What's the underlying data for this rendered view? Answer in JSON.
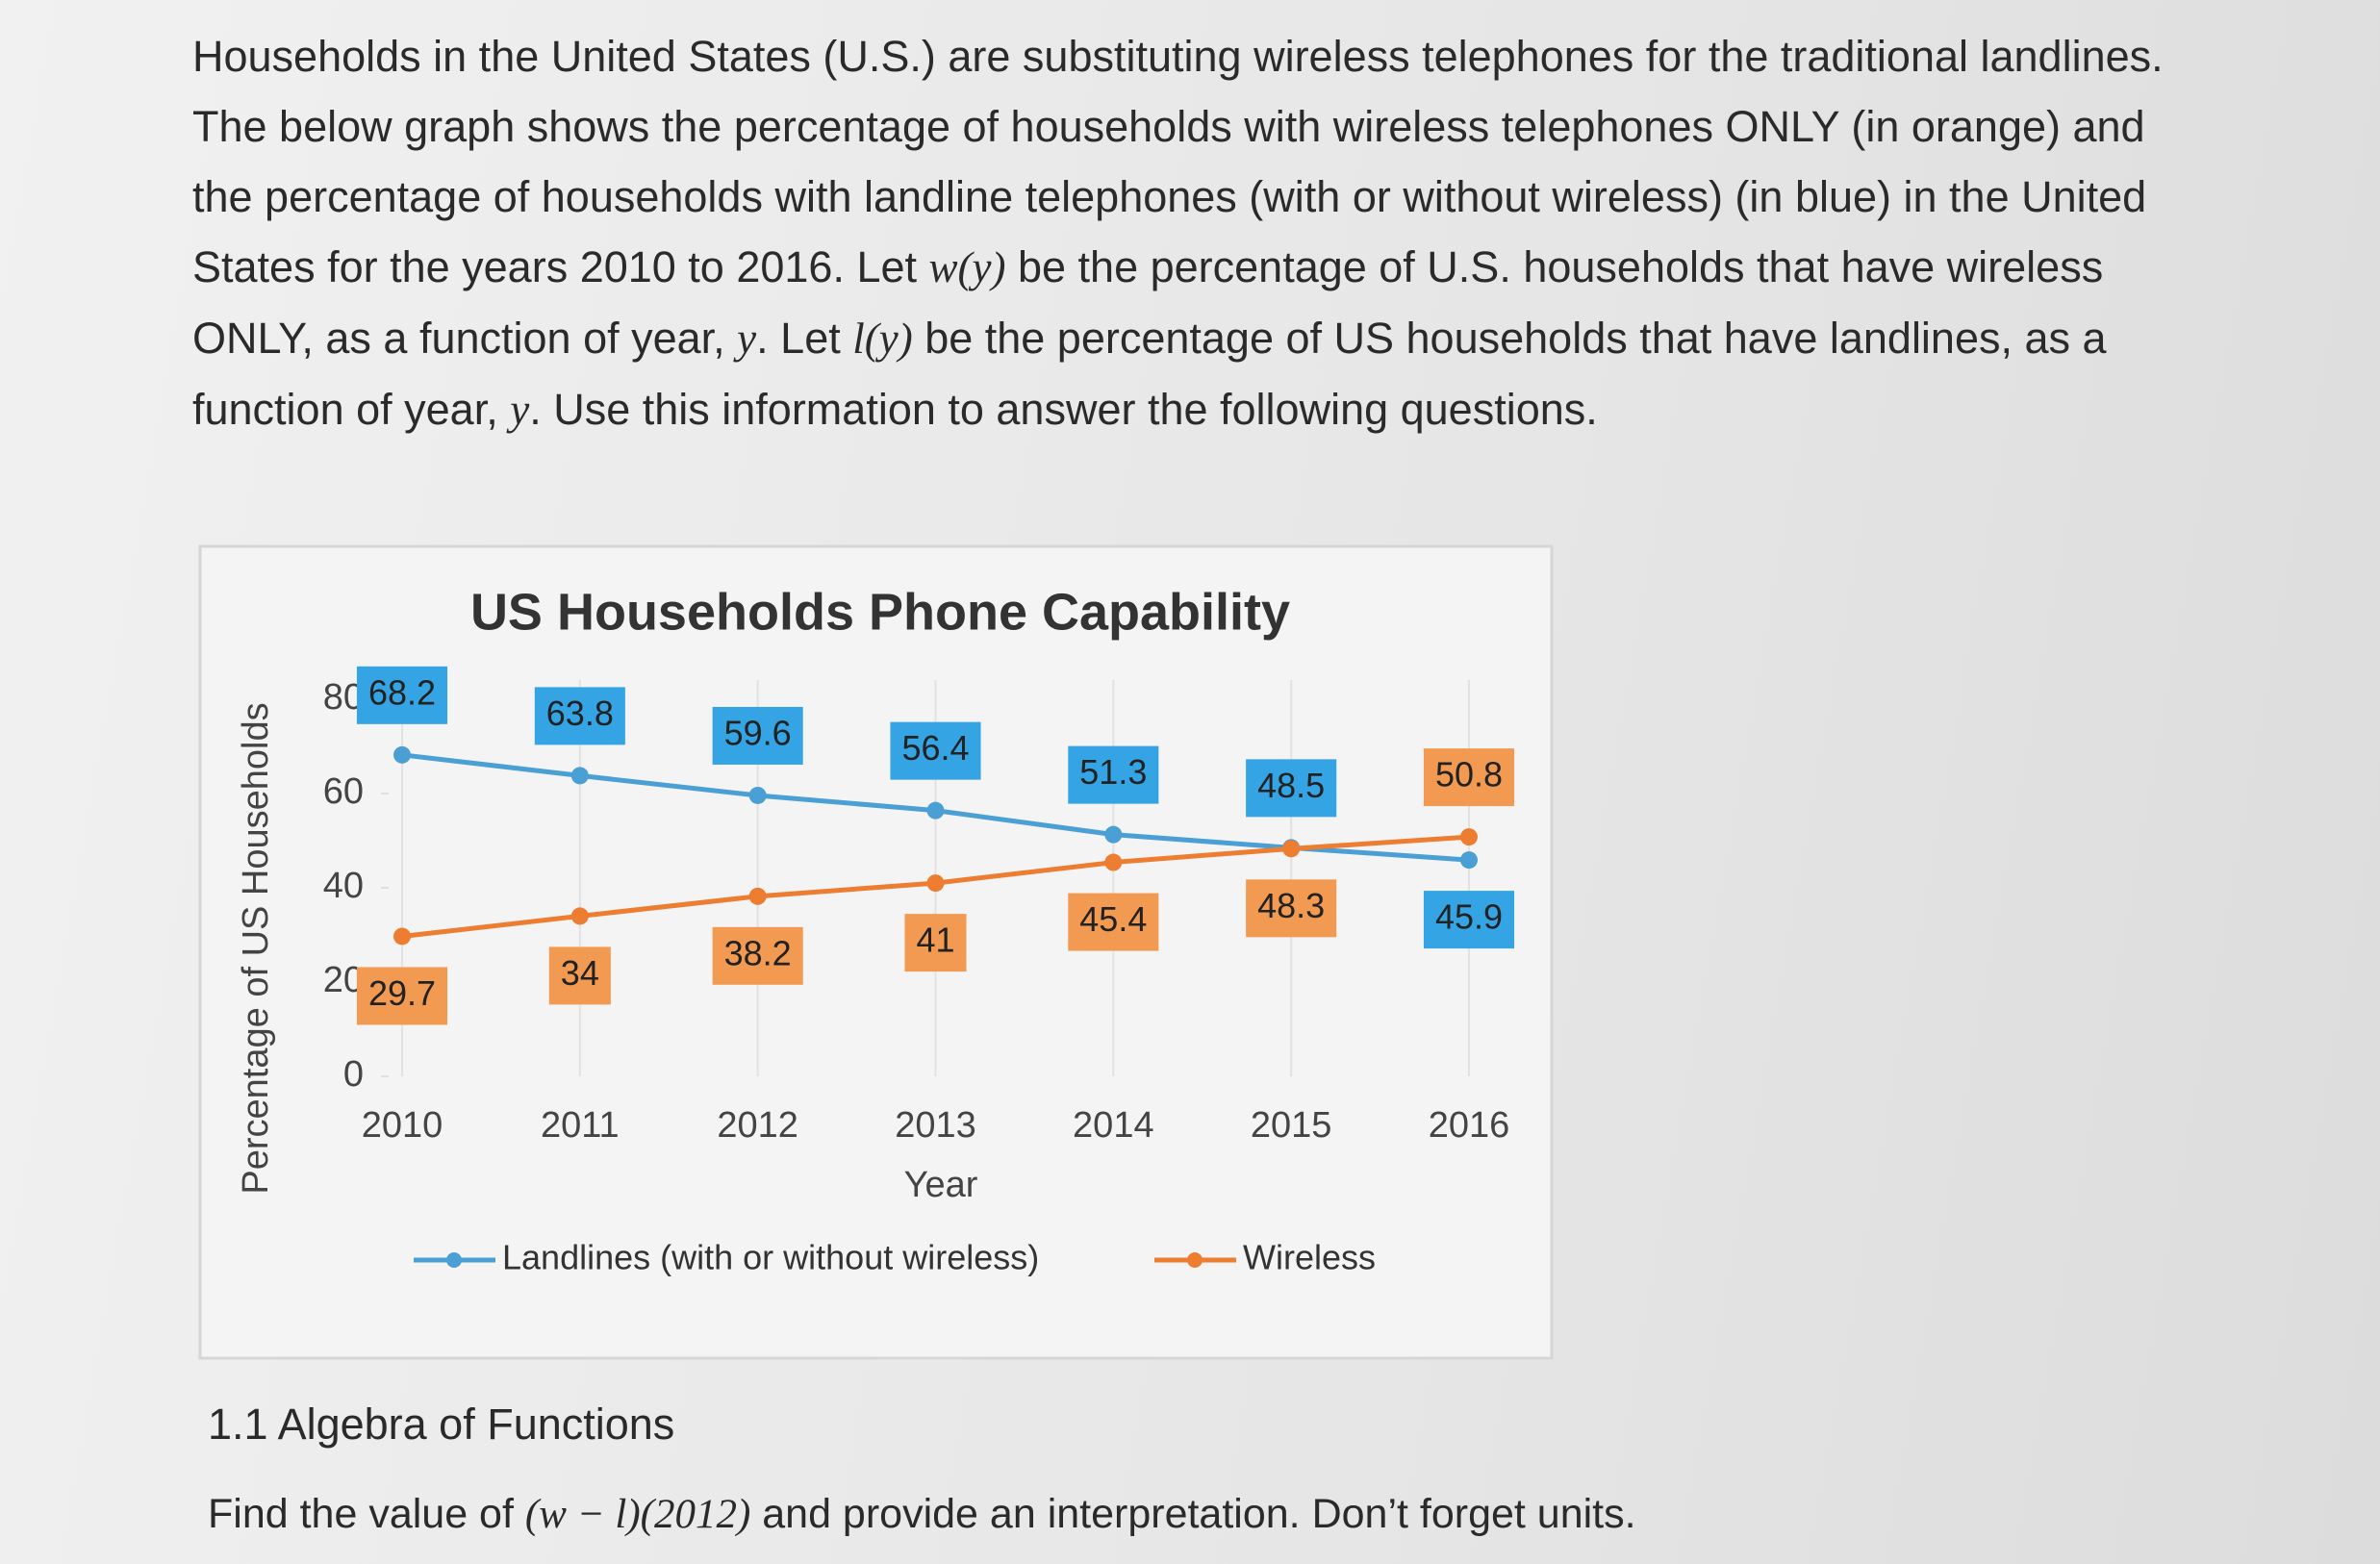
{
  "intro": [
    "Households in the United States (U.S.) are substituting wireless telephones for the traditional landlines. The below graph shows the percentage of households with wireless telephones ONLY (in orange) and the percentage of households with landline telephones (with or without wireless) (in blue) in the United States for the years 2010 to 2016. Let ",
    "w(y)",
    " be the percentage of U.S. households that have wireless ONLY, as a function of year, ",
    "y",
    ". Let ",
    "l(y)",
    " be the percentage of US households that have landlines, as a function of year, ",
    "y",
    ". Use this information to answer the following questions."
  ],
  "chart_data": {
    "type": "line",
    "title": "US Households Phone Capability",
    "x_label": "Year",
    "y_label": "Percentage of US Households",
    "categories": [
      "2010",
      "2011",
      "2012",
      "2013",
      "2014",
      "2015",
      "2016"
    ],
    "series": [
      {
        "name": "Landlines (with or without wireless)",
        "color": "#4a9fd5",
        "label_color": "#35a4e4",
        "values": [
          68.2,
          63.8,
          59.6,
          56.4,
          51.3,
          48.5,
          45.9
        ]
      },
      {
        "name": "Wireless",
        "color": "#ed7d31",
        "label_color": "#f29a52",
        "values": [
          29.7,
          34,
          38.2,
          41,
          45.4,
          48.3,
          50.8
        ]
      }
    ],
    "ylim": [
      0,
      80
    ],
    "yticks": [
      0,
      20,
      40,
      60,
      80
    ],
    "legend": "bottom"
  },
  "section": {
    "heading": "1.1 Algebra of Functions",
    "question": [
      "Find the value of ",
      "(w − l)(2012)",
      " and provide an interpretation. Don’t forget units."
    ]
  }
}
